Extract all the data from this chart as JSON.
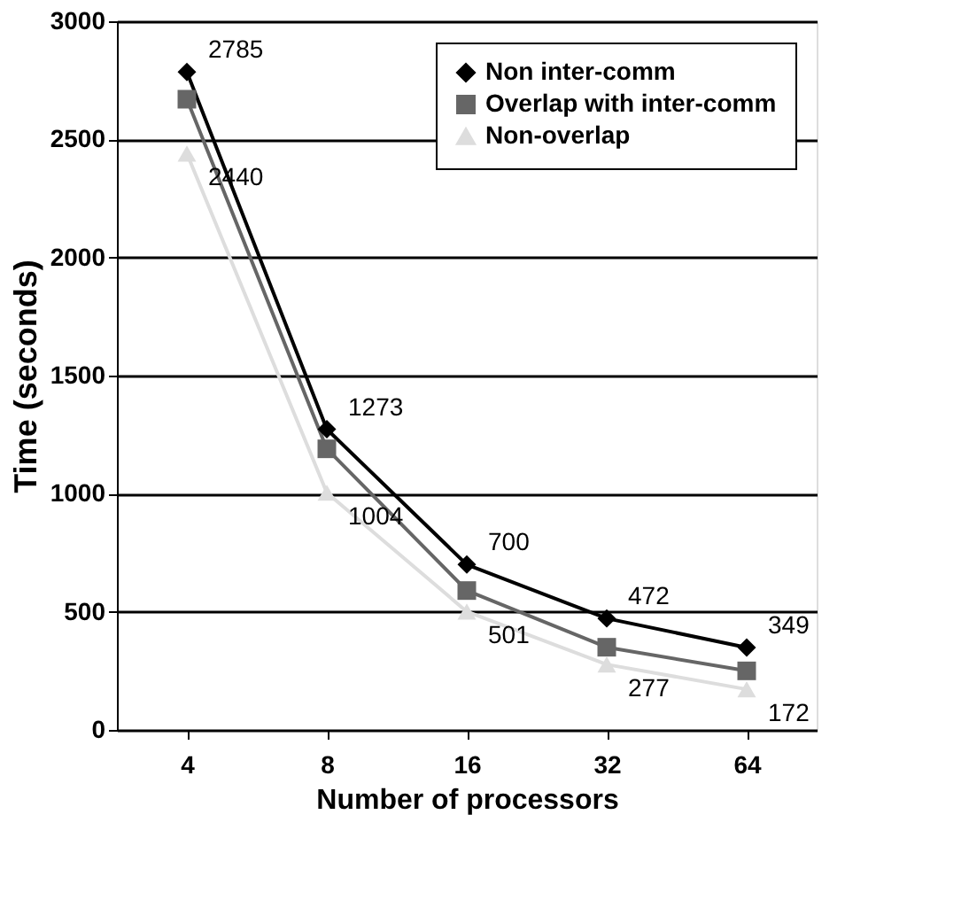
{
  "chart_data": {
    "type": "line",
    "xlabel": "Number of processors",
    "ylabel": "Time (seconds)",
    "categories": [
      "4",
      "8",
      "16",
      "32",
      "64"
    ],
    "ylim": [
      0,
      3000
    ],
    "yticks": [
      0,
      500,
      1000,
      1500,
      2000,
      2500,
      3000
    ],
    "grid": "y",
    "legend": "top right",
    "line_style": "solid",
    "series": [
      {
        "name": "Non inter-comm",
        "color": "#000000",
        "marker": "diamond",
        "values": [
          2785,
          1273,
          700,
          472,
          349
        ],
        "value_labels": [
          "2785",
          "1273",
          "700",
          "472",
          "349"
        ]
      },
      {
        "name": "Overlap with inter-comm",
        "color": "#666666",
        "marker": "square",
        "values": [
          2670,
          1190,
          590,
          350,
          250
        ]
      },
      {
        "name": "Non-overlap",
        "color": "#dddddd",
        "marker": "triangle",
        "values": [
          2440,
          1004,
          501,
          277,
          172
        ],
        "value_labels": [
          "2440",
          "1004",
          "501",
          "277",
          "172"
        ]
      }
    ]
  }
}
